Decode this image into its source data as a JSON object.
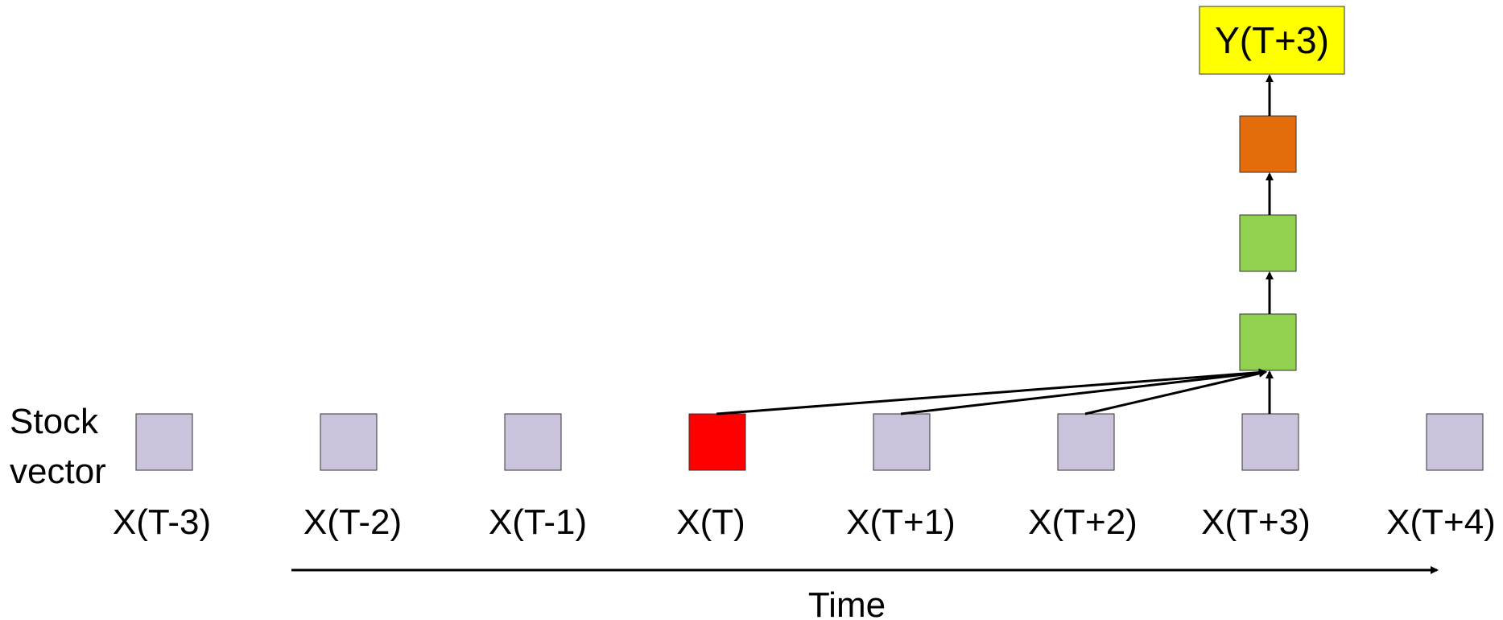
{
  "side_label": {
    "line1": "Stock",
    "line2": "vector"
  },
  "inputs": [
    {
      "label": "X(T-3)",
      "color": "#CBC3DC"
    },
    {
      "label": "X(T-2)",
      "color": "#CBC3DC"
    },
    {
      "label": "X(T-1)",
      "color": "#CBC3DC"
    },
    {
      "label": "X(T)",
      "color": "#FF0000"
    },
    {
      "label": "X(T+1)",
      "color": "#CBC3DC"
    },
    {
      "label": "X(T+2)",
      "color": "#CBC3DC"
    },
    {
      "label": "X(T+3)",
      "color": "#CBC3DC"
    },
    {
      "label": "X(T+4)",
      "color": "#CBC3DC"
    }
  ],
  "hidden_layers": [
    {
      "color": "#92D050"
    },
    {
      "color": "#92D050"
    },
    {
      "color": "#E46C0A"
    }
  ],
  "output": {
    "label": "Y(T+3)",
    "color": "#FFFF00"
  },
  "time_axis": {
    "label": "Time"
  }
}
